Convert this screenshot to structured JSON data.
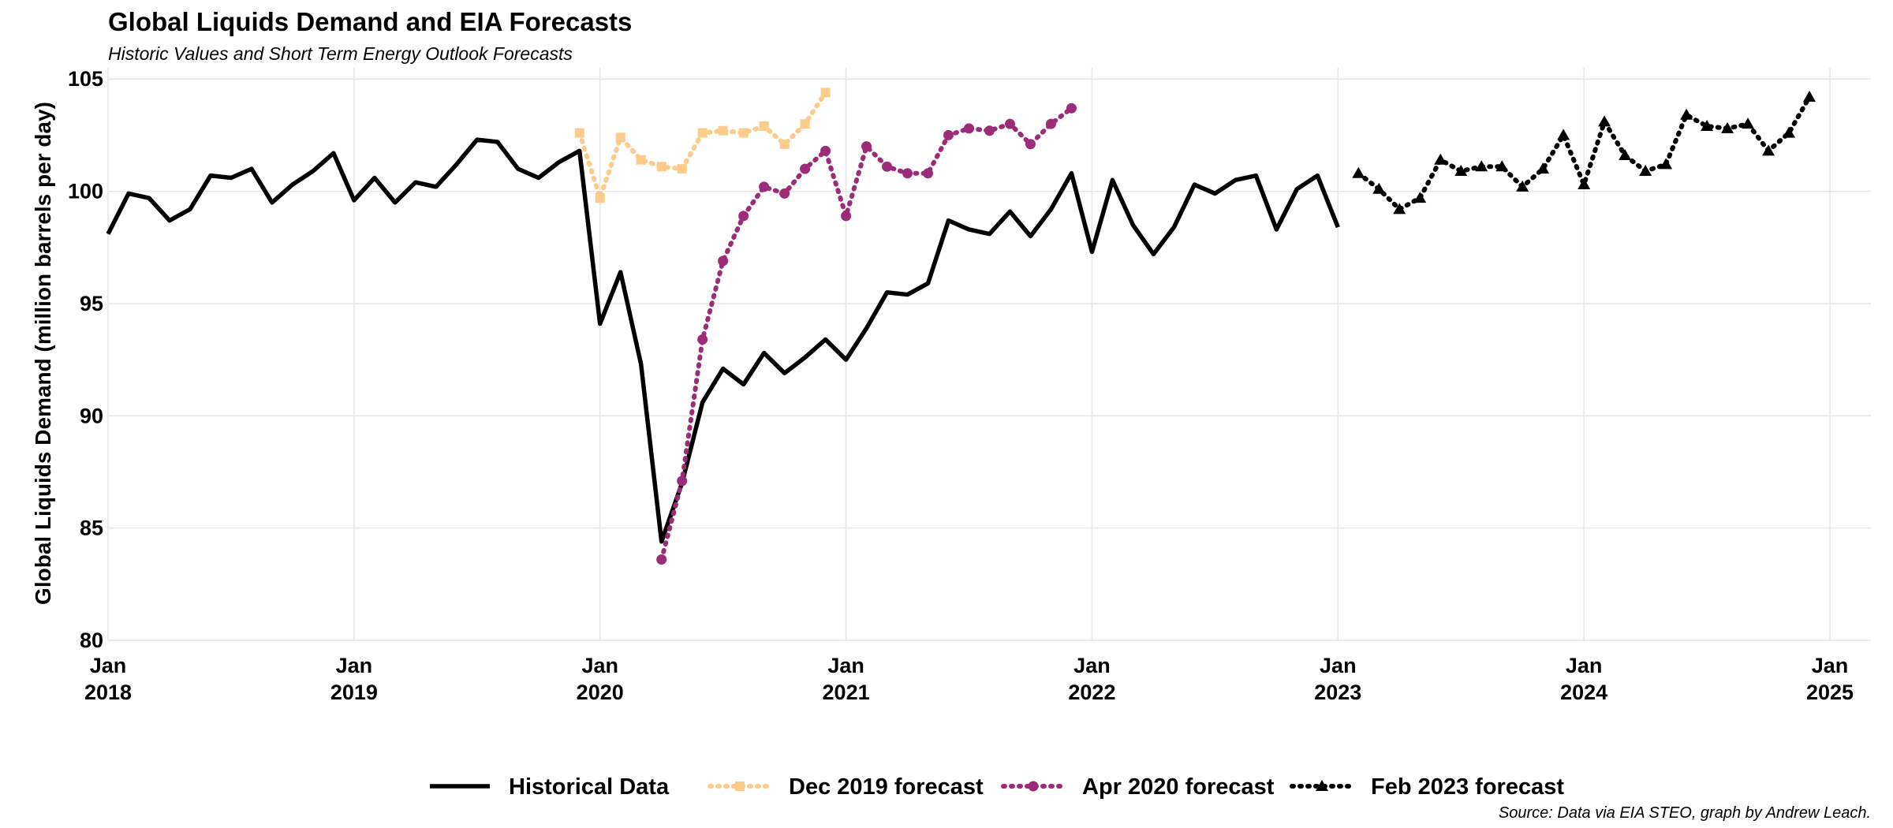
{
  "chart_data": {
    "type": "line",
    "title": "Global Liquids Demand and EIA Forecasts",
    "subtitle": "Historic Values and Short Term Energy Outlook Forecasts",
    "xlabel": "",
    "ylabel": "Global Liquids Demand (million barrels per day)",
    "ylim": [
      80,
      105.5
    ],
    "yticks": [
      80,
      85,
      90,
      95,
      100,
      105
    ],
    "xlim": [
      "2018-01",
      "2025-03"
    ],
    "xticks": [
      {
        "date": "2018-01",
        "month": "Jan",
        "year": "2018"
      },
      {
        "date": "2019-01",
        "month": "Jan",
        "year": "2019"
      },
      {
        "date": "2020-01",
        "month": "Jan",
        "year": "2020"
      },
      {
        "date": "2021-01",
        "month": "Jan",
        "year": "2021"
      },
      {
        "date": "2022-01",
        "month": "Jan",
        "year": "2022"
      },
      {
        "date": "2023-01",
        "month": "Jan",
        "year": "2023"
      },
      {
        "date": "2024-01",
        "month": "Jan",
        "year": "2024"
      },
      {
        "date": "2025-01",
        "month": "Jan",
        "year": "2025"
      }
    ],
    "grid": true,
    "legend_position": "bottom",
    "caption": "Source: Data via EIA STEO, graph by Andrew Leach.",
    "series": [
      {
        "name": "Historical Data",
        "color": "#000000",
        "line_style": "solid",
        "marker": "none",
        "start": "2018-01",
        "values": [
          98.1,
          99.9,
          99.7,
          98.7,
          99.2,
          100.7,
          100.6,
          101.0,
          99.5,
          100.3,
          100.9,
          101.7,
          99.6,
          100.6,
          99.5,
          100.4,
          100.2,
          101.2,
          102.3,
          102.2,
          101.0,
          100.6,
          101.3,
          101.8,
          94.1,
          96.4,
          92.3,
          84.4,
          87.0,
          90.6,
          92.1,
          91.4,
          92.8,
          91.9,
          92.6,
          93.4,
          92.5,
          93.9,
          95.5,
          95.4,
          95.9,
          98.7,
          98.3,
          98.1,
          99.1,
          98.0,
          99.2,
          100.8,
          97.3,
          100.5,
          98.5,
          97.2,
          98.4,
          100.3,
          99.9,
          100.5,
          100.7,
          98.3,
          100.1,
          100.7,
          98.4
        ]
      },
      {
        "name": "Dec 2019 forecast",
        "color": "#fdcb8b",
        "line_style": "dotted",
        "marker": "square",
        "start": "2019-12",
        "values": [
          102.6,
          99.7,
          102.4,
          101.4,
          101.1,
          101.0,
          102.6,
          102.7,
          102.6,
          102.9,
          102.1,
          103.0,
          104.4
        ]
      },
      {
        "name": "Apr 2020 forecast",
        "color": "#9c2c78",
        "line_style": "dotted",
        "marker": "circle",
        "start": "2020-04",
        "values": [
          83.6,
          87.1,
          93.4,
          96.9,
          98.9,
          100.2,
          99.9,
          101.0,
          101.8,
          98.9,
          102.0,
          101.1,
          100.8,
          100.8,
          102.5,
          102.8,
          102.7,
          103.0,
          102.1,
          103.0,
          103.7
        ]
      },
      {
        "name": "Feb 2023 forecast",
        "color": "#000000",
        "line_style": "dotted",
        "marker": "triangle",
        "start": "2023-02",
        "values": [
          100.8,
          100.1,
          99.2,
          99.7,
          101.4,
          100.9,
          101.1,
          101.1,
          100.2,
          101.0,
          102.5,
          100.3,
          103.1,
          101.6,
          100.9,
          101.2,
          103.4,
          102.9,
          102.8,
          103.0,
          101.8,
          102.6,
          104.2
        ]
      }
    ]
  }
}
